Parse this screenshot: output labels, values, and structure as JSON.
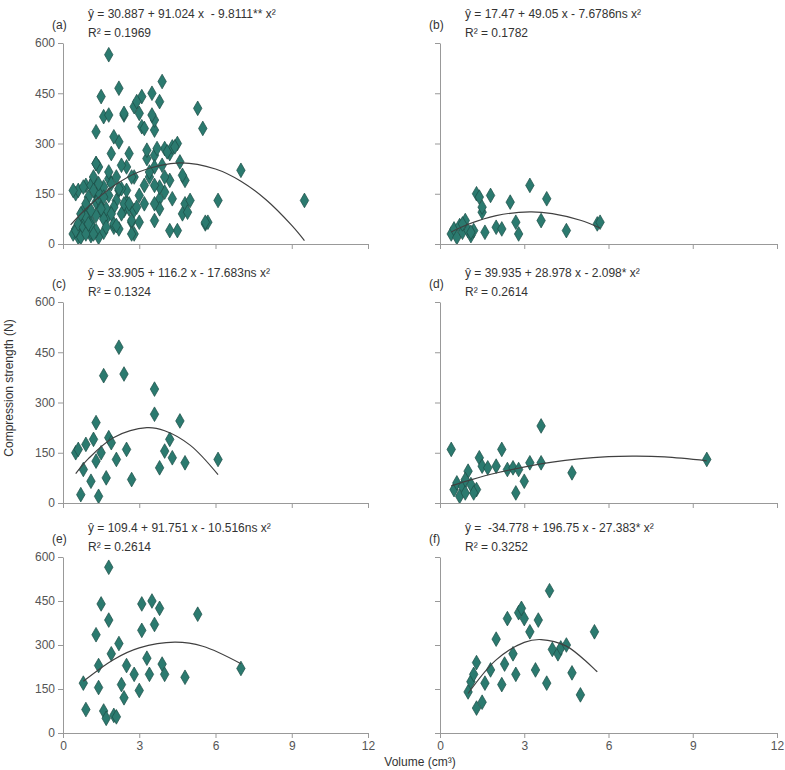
{
  "figure": {
    "xlabel": "Volume (cm³)",
    "ylabel": "Compression strength (N)"
  },
  "chart_data": [
    {
      "type": "scatter",
      "title": "(a)",
      "annotations": [
        "ŷ = 30.887 + 91.024 x  - 9.8111** x²",
        "R² = 0.1969"
      ],
      "xlim": [
        0,
        12
      ],
      "xticks": [
        0,
        3,
        6,
        9,
        12
      ],
      "ylim": [
        0,
        600
      ],
      "yticks": [
        0,
        150,
        300,
        450,
        600
      ],
      "tick_labels": "y",
      "series": [
        {
          "type": "scatter",
          "marker": "diamond",
          "color": "#2b7a6f",
          "x": [
            0.4,
            0.5,
            0.6,
            0.7,
            0.8,
            0.9,
            1.0,
            1.1,
            1.2,
            1.3,
            1.4,
            1.5,
            1.5,
            1.6,
            1.8,
            2.0,
            2.2,
            2.5,
            2.7,
            2.8,
            3.2,
            3.6,
            3.8,
            4.5,
            5.6,
            5.7,
            1.1,
            0.8,
            0.5,
            0.6,
            0.7,
            0.8,
            0.9,
            1.1,
            1.2,
            1.3,
            1.3,
            1.4,
            1.5,
            1.6,
            1.7,
            1.8,
            1.9,
            2.1,
            2.2,
            2.4,
            2.5,
            2.7,
            3.6,
            3.6,
            3.8,
            4.0,
            4.2,
            4.3,
            4.6,
            4.8,
            6.1,
            0.4,
            0.5,
            0.6,
            0.7,
            0.8,
            0.9,
            1.0,
            1.1,
            1.3,
            1.4,
            1.5,
            1.7,
            2.0,
            2.2,
            2.4,
            2.6,
            2.7,
            2.8,
            3.0,
            3.2,
            3.6,
            3.6,
            4.7,
            9.5,
            0.9,
            1.2,
            0.8,
            0.9,
            1.3,
            1.4,
            1.4,
            1.5,
            1.6,
            1.7,
            1.8,
            1.8,
            1.9,
            2.0,
            2.1,
            2.2,
            2.3,
            2.4,
            2.5,
            2.8,
            3.0,
            3.1,
            3.1,
            3.3,
            3.4,
            3.5,
            3.6,
            3.8,
            3.9,
            4.0,
            4.8,
            5.3,
            7.0,
            1.0,
            1.1,
            1.3,
            1.3,
            1.5,
            1.6,
            1.8,
            2.0,
            2.2,
            2.3,
            2.4,
            2.6,
            2.7,
            2.8,
            2.9,
            3.0,
            3.2,
            3.4,
            3.5,
            3.8,
            3.9,
            4.0,
            4.2,
            4.3,
            4.5,
            4.7,
            5.0,
            5.5,
            1.2,
            0.9,
            1.0,
            1.2,
            1.4,
            1.6,
            1.9,
            2.1,
            2.3,
            2.6,
            3.3,
            3.7,
            4.1,
            4.4,
            4.9,
            4.2,
            5.6,
            2.9,
            1.1,
            0.7,
            3.6
          ],
          "values": [
            30,
            45,
            20,
            55,
            35,
            70,
            40,
            25,
            40,
            150,
            140,
            95,
            110,
            35,
            145,
            50,
            45,
            125,
            65,
            30,
            175,
            70,
            135,
            40,
            60,
            65,
            35,
            60,
            150,
            160,
            25,
            100,
            175,
            65,
            190,
            240,
            125,
            20,
            150,
            380,
            75,
            195,
            180,
            130,
            465,
            385,
            160,
            70,
            340,
            265,
            105,
            155,
            190,
            135,
            245,
            120,
            130,
            160,
            40,
            60,
            20,
            50,
            30,
            95,
            55,
            40,
            135,
            110,
            105,
            110,
            160,
            100,
            105,
            30,
            100,
            65,
            120,
            230,
            120,
            90,
            130,
            70,
            30,
            170,
            80,
            335,
            230,
            155,
            440,
            75,
            50,
            385,
            565,
            270,
            60,
            55,
            305,
            165,
            120,
            230,
            200,
            145,
            440,
            350,
            255,
            200,
            450,
            370,
            425,
            235,
            200,
            190,
            405,
            220,
            140,
            175,
            240,
            85,
            105,
            170,
            215,
            320,
            165,
            235,
            390,
            270,
            200,
            410,
            425,
            390,
            345,
            215,
            385,
            170,
            485,
            285,
            270,
            290,
            300,
            205,
            130,
            345,
            200,
            120,
            60,
            160,
            180,
            140,
            90,
            200,
            90,
            120,
            280,
            285,
            275,
            290,
            95,
            40,
            65,
            110,
            100,
            90,
            175
          ]
        },
        {
          "type": "line",
          "color": "#404040",
          "x": [
            0.3,
            1,
            2,
            3,
            4.6,
            6,
            7,
            8,
            9,
            9.5
          ],
          "values": [
            57.3,
            112.1,
            173.7,
            215.7,
            242,
            223.8,
            187.4,
            131.2,
            55.4,
            10.2
          ]
        }
      ]
    },
    {
      "type": "scatter",
      "title": "(b)",
      "annotations": [
        "ŷ = 17.47 + 49.05 x - 7.6786ns x²",
        "R² = 0.1782"
      ],
      "xlim": [
        0,
        12
      ],
      "xticks": [
        0,
        3,
        6,
        9,
        12
      ],
      "ylim": [
        0,
        600
      ],
      "yticks": [
        0,
        150,
        300,
        450,
        600
      ],
      "tick_labels": false,
      "series": [
        {
          "type": "scatter",
          "marker": "diamond",
          "color": "#2b7a6f",
          "x": [
            0.4,
            0.5,
            0.6,
            0.7,
            0.8,
            0.9,
            1.0,
            1.1,
            1.2,
            1.3,
            1.4,
            1.5,
            1.5,
            1.6,
            1.8,
            2.0,
            2.2,
            2.5,
            2.7,
            2.8,
            3.2,
            3.6,
            3.8,
            4.5,
            5.6,
            5.7,
            1.1,
            0.8
          ],
          "values": [
            30,
            45,
            20,
            55,
            35,
            70,
            40,
            25,
            40,
            150,
            140,
            95,
            110,
            35,
            145,
            50,
            45,
            125,
            65,
            30,
            175,
            70,
            135,
            40,
            60,
            65,
            35,
            60
          ]
        },
        {
          "type": "line",
          "color": "#404040",
          "x": [
            0.4,
            1,
            2,
            3.2,
            4,
            5,
            5.7
          ],
          "values": [
            35.9,
            58.8,
            84.9,
            95.9,
            90.8,
            70.8,
            47.6
          ]
        }
      ]
    },
    {
      "type": "scatter",
      "title": "(c)",
      "annotations": [
        "ŷ = 33.905 + 116.2 x - 17.683ns x²",
        "R² = 0.1324"
      ],
      "xlim": [
        0,
        12
      ],
      "xticks": [
        0,
        3,
        6,
        9,
        12
      ],
      "ylim": [
        0,
        600
      ],
      "yticks": [
        0,
        150,
        300,
        450,
        600
      ],
      "tick_labels": "y",
      "series": [
        {
          "type": "scatter",
          "marker": "diamond",
          "color": "#2b7a6f",
          "x": [
            0.5,
            0.6,
            0.7,
            0.8,
            0.9,
            1.1,
            1.2,
            1.3,
            1.3,
            1.4,
            1.5,
            1.6,
            1.7,
            1.8,
            1.9,
            2.1,
            2.2,
            2.4,
            2.5,
            2.7,
            3.6,
            3.6,
            3.8,
            4.0,
            4.2,
            4.3,
            4.6,
            4.8,
            6.1
          ],
          "values": [
            150,
            160,
            25,
            100,
            175,
            65,
            190,
            240,
            125,
            20,
            150,
            380,
            75,
            195,
            180,
            130,
            465,
            385,
            160,
            70,
            340,
            265,
            105,
            155,
            190,
            135,
            245,
            120,
            130
          ]
        },
        {
          "type": "line",
          "color": "#404040",
          "x": [
            0.5,
            1,
            2,
            3.3,
            4,
            5,
            6.1
          ],
          "values": [
            87.6,
            132.4,
            195.6,
            224.8,
            215.8,
            172.8,
            84.7
          ]
        }
      ]
    },
    {
      "type": "scatter",
      "title": "(d)",
      "annotations": [
        "ŷ = 39.935 + 28.978 x - 2.098* x²",
        "R² = 0.2614"
      ],
      "xlim": [
        0,
        12
      ],
      "xticks": [
        0,
        3,
        6,
        9,
        12
      ],
      "ylim": [
        0,
        600
      ],
      "yticks": [
        0,
        150,
        300,
        450,
        600
      ],
      "tick_labels": false,
      "series": [
        {
          "type": "scatter",
          "marker": "diamond",
          "color": "#2b7a6f",
          "x": [
            0.4,
            0.5,
            0.6,
            0.7,
            0.8,
            0.9,
            1.0,
            1.1,
            1.3,
            1.4,
            1.5,
            1.7,
            2.0,
            2.2,
            2.4,
            2.6,
            2.7,
            2.8,
            3.0,
            3.2,
            3.6,
            3.6,
            4.7,
            9.5,
            0.9,
            1.2
          ],
          "values": [
            160,
            40,
            60,
            20,
            50,
            30,
            95,
            55,
            40,
            135,
            110,
            105,
            110,
            160,
            100,
            105,
            30,
            100,
            65,
            120,
            230,
            120,
            90,
            130,
            70,
            30
          ]
        },
        {
          "type": "line",
          "color": "#404040",
          "x": [
            0.4,
            1,
            2,
            4,
            6,
            7,
            8,
            9.5
          ],
          "values": [
            51.2,
            66.8,
            89.5,
            122.2,
            138.3,
            139.9,
            137.4,
            125.9
          ]
        }
      ]
    },
    {
      "type": "scatter",
      "title": "(e)",
      "annotations": [
        "ŷ = 109.4 + 91.751 x - 10.516ns x²",
        "R² = 0.2614"
      ],
      "xlim": [
        0,
        12
      ],
      "xticks": [
        0,
        3,
        6,
        9,
        12
      ],
      "ylim": [
        0,
        600
      ],
      "yticks": [
        0,
        150,
        300,
        450,
        600
      ],
      "tick_labels": true,
      "series": [
        {
          "type": "scatter",
          "marker": "diamond",
          "color": "#2b7a6f",
          "x": [
            0.8,
            0.9,
            1.3,
            1.4,
            1.4,
            1.5,
            1.6,
            1.7,
            1.8,
            1.8,
            1.9,
            2.0,
            2.1,
            2.2,
            2.3,
            2.4,
            2.5,
            2.8,
            3.0,
            3.1,
            3.1,
            3.3,
            3.4,
            3.5,
            3.6,
            3.8,
            3.9,
            4.0,
            4.8,
            5.3,
            7.0
          ],
          "values": [
            170,
            80,
            335,
            230,
            155,
            440,
            75,
            50,
            385,
            565,
            270,
            60,
            55,
            305,
            165,
            120,
            230,
            200,
            145,
            440,
            350,
            255,
            200,
            450,
            370,
            425,
            235,
            200,
            190,
            405,
            220
          ]
        },
        {
          "type": "line",
          "color": "#404040",
          "x": [
            0.8,
            2,
            3,
            4.4,
            5.5,
            7
          ],
          "values": [
            176.1,
            250.8,
            290.1,
            309.5,
            295.9,
            236.4
          ]
        }
      ]
    },
    {
      "type": "scatter",
      "title": "(f)",
      "annotations": [
        "ŷ =  -34.778 + 196.75 x - 27.383* x²",
        "R² = 0.3252"
      ],
      "xlim": [
        0,
        12
      ],
      "xticks": [
        0,
        3,
        6,
        9,
        12
      ],
      "ylim": [
        0,
        600
      ],
      "yticks": [
        0,
        150,
        300,
        450,
        600
      ],
      "tick_labels": "x",
      "series": [
        {
          "type": "scatter",
          "marker": "diamond",
          "color": "#2b7a6f",
          "x": [
            1.0,
            1.1,
            1.3,
            1.3,
            1.5,
            1.6,
            1.8,
            2.0,
            2.2,
            2.3,
            2.4,
            2.6,
            2.7,
            2.8,
            2.9,
            3.0,
            3.2,
            3.4,
            3.5,
            3.8,
            3.9,
            4.0,
            4.2,
            4.3,
            4.5,
            4.7,
            5.0,
            5.5,
            1.2
          ],
          "values": [
            140,
            175,
            240,
            85,
            105,
            170,
            215,
            320,
            165,
            235,
            390,
            270,
            200,
            410,
            425,
            390,
            345,
            215,
            385,
            170,
            485,
            285,
            270,
            290,
            300,
            205,
            130,
            345,
            200
          ]
        },
        {
          "type": "line",
          "color": "#404040",
          "x": [
            1,
            2,
            3,
            3.6,
            4.5,
            5.6
          ],
          "values": [
            134.6,
            249.2,
            309.1,
            318.6,
            296.1,
            208.2
          ]
        }
      ]
    }
  ]
}
